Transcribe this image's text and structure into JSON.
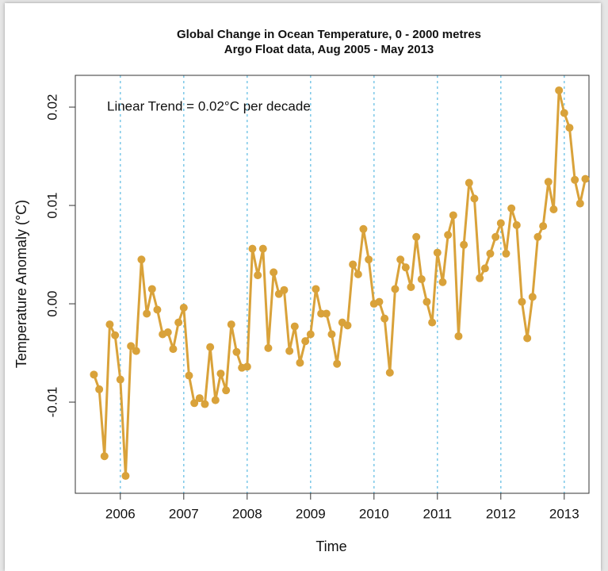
{
  "chart_data": {
    "type": "line",
    "title": "Global Change in Ocean Temperature, 0 - 2000 metres",
    "subtitle": "Argo Float data, Aug 2005 - May 2013",
    "annotation": "Linear Trend = 0.02°C per decade",
    "x_label": "Time",
    "y_label": "Temperature Anomaly (°C)",
    "xlim": [
      2005.29,
      2013.39
    ],
    "ylim": [
      -0.01927,
      0.02323
    ],
    "xticks": [
      2006,
      2007,
      2008,
      2009,
      2010,
      2011,
      2012,
      2013
    ],
    "yticks": [
      -0.01,
      {
        "value": 0,
        "label": "0.00"
      },
      0.01,
      0.02
    ],
    "x_grid": true,
    "color": "#d9a23a",
    "x": [
      2005.583,
      2005.667,
      2005.75,
      2005.833,
      2005.917,
      2006,
      2006.083,
      2006.167,
      2006.25,
      2006.333,
      2006.417,
      2006.5,
      2006.583,
      2006.667,
      2006.75,
      2006.833,
      2006.917,
      2007,
      2007.083,
      2007.167,
      2007.25,
      2007.333,
      2007.417,
      2007.5,
      2007.583,
      2007.667,
      2007.75,
      2007.833,
      2007.917,
      2008,
      2008.083,
      2008.167,
      2008.25,
      2008.333,
      2008.417,
      2008.5,
      2008.583,
      2008.667,
      2008.75,
      2008.833,
      2008.917,
      2009,
      2009.083,
      2009.167,
      2009.25,
      2009.333,
      2009.417,
      2009.5,
      2009.583,
      2009.667,
      2009.75,
      2009.833,
      2009.917,
      2010,
      2010.083,
      2010.167,
      2010.25,
      2010.333,
      2010.417,
      2010.5,
      2010.583,
      2010.667,
      2010.75,
      2010.833,
      2010.917,
      2011,
      2011.083,
      2011.167,
      2011.25,
      2011.333,
      2011.417,
      2011.5,
      2011.583,
      2011.667,
      2011.75,
      2011.833,
      2011.917,
      2012,
      2012.083,
      2012.167,
      2012.25,
      2012.333,
      2012.417,
      2012.5,
      2012.583,
      2012.667,
      2012.75,
      2012.833,
      2012.917,
      2013,
      2013.083,
      2013.167,
      2013.25,
      2013.333
    ],
    "values": [
      -0.0072,
      -0.0087,
      -0.0155,
      -0.0021,
      -0.0032,
      -0.0077,
      -0.0175,
      -0.0043,
      -0.0048,
      0.0045,
      -0.001,
      0.0015,
      -0.0006,
      -0.0031,
      -0.0029,
      -0.0046,
      -0.0019,
      -0.0004,
      -0.0073,
      -0.0101,
      -0.0096,
      -0.0102,
      -0.0044,
      -0.0098,
      -0.0071,
      -0.0088,
      -0.0021,
      -0.0049,
      -0.0065,
      -0.0064,
      0.0056,
      0.0029,
      0.0056,
      -0.0045,
      0.0032,
      0.001,
      0.0014,
      -0.0048,
      -0.0023,
      -0.006,
      -0.0038,
      -0.0031,
      0.0015,
      -0.001,
      -0.001,
      -0.0031,
      -0.0061,
      -0.0019,
      -0.0022,
      0.004,
      0.003,
      0.0076,
      0.0045,
      0.0,
      0.0002,
      -0.0015,
      -0.007,
      0.0015,
      0.0045,
      0.0037,
      0.0017,
      0.0068,
      0.0025,
      0.0002,
      -0.0019,
      0.0052,
      0.0022,
      0.007,
      0.009,
      -0.0033,
      0.006,
      0.0123,
      0.0107,
      0.0026,
      0.0036,
      0.0051,
      0.0068,
      0.0082,
      0.0051,
      0.0097,
      0.008,
      0.0002,
      -0.0035,
      0.0007,
      0.0068,
      0.0079,
      0.0124,
      0.0096,
      0.0217,
      0.0194,
      0.0179,
      0.0126,
      0.0102,
      0.0127
    ]
  }
}
